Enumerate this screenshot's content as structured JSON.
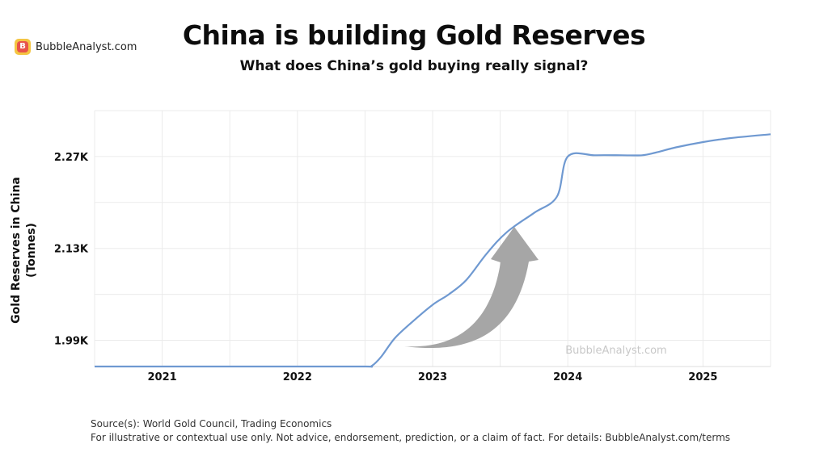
{
  "brand": {
    "badge_letter": "B",
    "name": "BubbleAnalyst.com"
  },
  "header": {
    "title": "China is building Gold Reserves",
    "subtitle": "What does China’s gold buying really signal?"
  },
  "watermark": "BubbleAnalyst.com",
  "footer": {
    "source": "Source(s): World Gold Council, Trading Economics",
    "disclaimer": "For illustrative or contextual use only. Not advice, endorsement, prediction, or a claim of fact. For details: BubbleAnalyst.com/terms"
  },
  "colors": {
    "line": "#6f99d1",
    "grid": "#ebebeb",
    "arrow": "#a6a6a6",
    "brand_badge": "#f4c542",
    "brand_inner": "#e8534a"
  },
  "chart_data": {
    "type": "line",
    "title": "China is building Gold Reserves",
    "subtitle": "What does China’s gold buying really signal?",
    "xlabel": "",
    "ylabel": "Gold Reserves in China (Tonnes)",
    "ylabel_lines": [
      "Gold Reserves in China",
      "(Tonnes)"
    ],
    "xlim": [
      2020.5,
      2025.5
    ],
    "ylim": [
      1950,
      2340
    ],
    "x_ticks": [
      2021,
      2022,
      2023,
      2024,
      2025
    ],
    "x_tick_labels": [
      "2021",
      "2022",
      "2023",
      "2024",
      "2025"
    ],
    "y_ticks": [
      1990,
      2130,
      2270
    ],
    "y_tick_labels": [
      "1.99K",
      "2.13K",
      "2.27K"
    ],
    "grid": true,
    "legend": "none",
    "annotation": "upward-arrow",
    "series": [
      {
        "values_x": [
          2020.5,
          2021.0,
          2021.5,
          2022.0,
          2022.5,
          2022.55,
          2022.62,
          2022.72,
          2022.85,
          2023.0,
          2023.12,
          2023.25,
          2023.4,
          2023.55,
          2023.75,
          2023.92,
          2024.0,
          2024.2,
          2024.4,
          2024.55,
          2024.65,
          2024.8,
          2025.0,
          2025.2,
          2025.5
        ],
        "values_y": [
          1950,
          1950,
          1950,
          1950,
          1950,
          1951,
          1965,
          1993,
          2018,
          2044,
          2060,
          2082,
          2122,
          2155,
          2184,
          2209,
          2270,
          2272,
          2272,
          2272,
          2276,
          2284,
          2292,
          2298,
          2304
        ]
      }
    ]
  }
}
